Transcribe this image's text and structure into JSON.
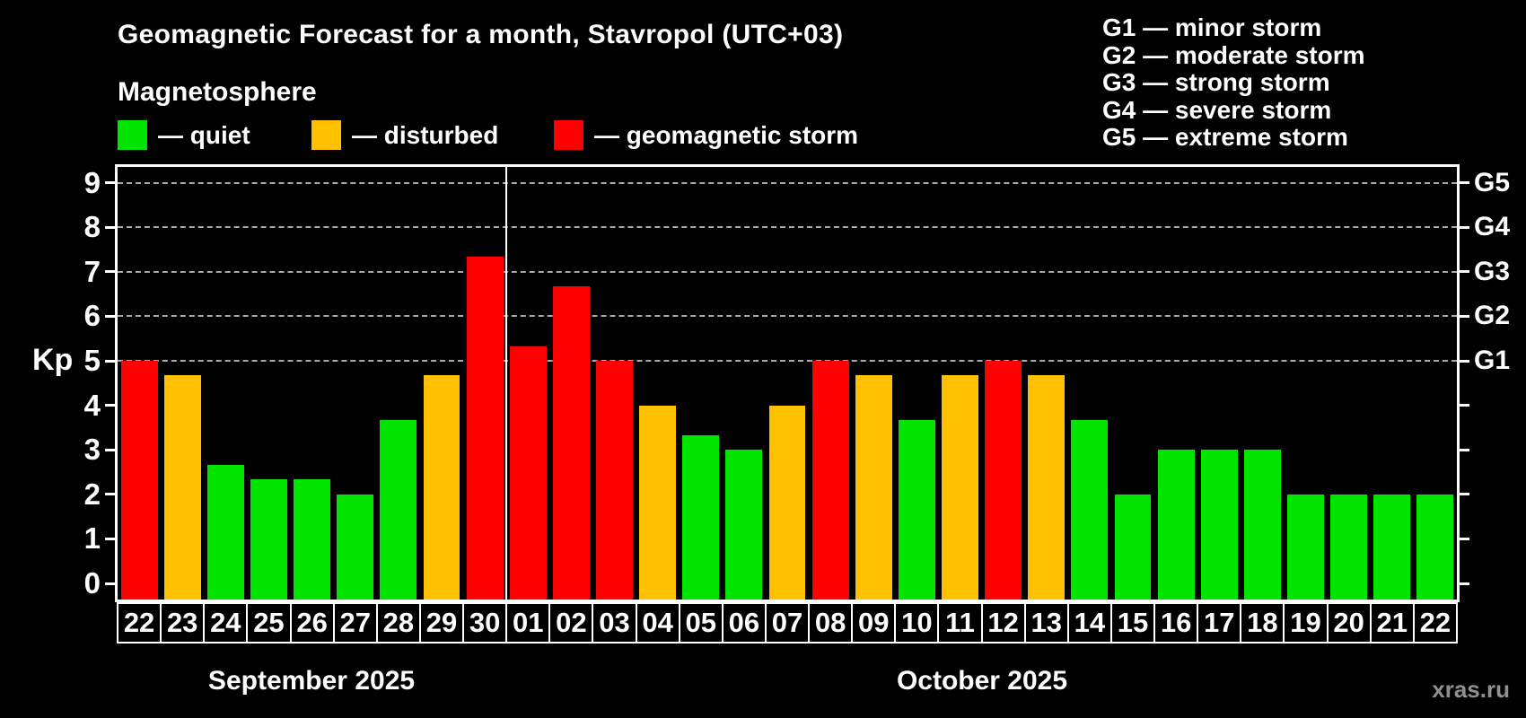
{
  "title": "Geomagnetic Forecast for a month, Stavropol (UTC+03)",
  "subtitle": "Magnetosphere",
  "watermark": "xras.ru",
  "colors": {
    "quiet": "#00e400",
    "disturbed": "#ffc000",
    "storm": "#ff0000",
    "grid": "#a9a9a9",
    "axis": "#ffffff",
    "watermark": "#909090"
  },
  "legend": {
    "items": [
      {
        "status": "quiet",
        "label": "— quiet"
      },
      {
        "status": "disturbed",
        "label": "— disturbed"
      },
      {
        "status": "storm",
        "label": "— geomagnetic storm"
      }
    ]
  },
  "g_legend": [
    "G1 — minor storm",
    "G2 — moderate storm",
    "G3 — strong storm",
    "G4 — severe storm",
    "G5 — extreme storm"
  ],
  "chart_data": {
    "type": "bar",
    "title": "Geomagnetic Forecast for a month, Stavropol (UTC+03)",
    "xlabel": "",
    "ylabel": "Kp",
    "ylim": [
      0,
      9.4
    ],
    "yticks": [
      0,
      1,
      2,
      3,
      4,
      5,
      6,
      7,
      8,
      9
    ],
    "gridlines_at": [
      5,
      6,
      7,
      8,
      9
    ],
    "grid": "horizontal dashed at storm levels only",
    "legend_position": "top",
    "right_axis_labels": {
      "5": "G1",
      "6": "G2",
      "7": "G3",
      "8": "G4",
      "9": "G5"
    },
    "groups": [
      {
        "month": "September 2025",
        "count": 9
      },
      {
        "month": "October 2025",
        "count": 22
      }
    ],
    "bars": [
      {
        "date": "22",
        "value": 5.0,
        "status": "storm"
      },
      {
        "date": "23",
        "value": 4.67,
        "status": "disturbed"
      },
      {
        "date": "24",
        "value": 2.67,
        "status": "quiet"
      },
      {
        "date": "25",
        "value": 2.33,
        "status": "quiet"
      },
      {
        "date": "26",
        "value": 2.33,
        "status": "quiet"
      },
      {
        "date": "27",
        "value": 2.0,
        "status": "quiet"
      },
      {
        "date": "28",
        "value": 3.67,
        "status": "quiet"
      },
      {
        "date": "29",
        "value": 4.67,
        "status": "disturbed"
      },
      {
        "date": "30",
        "value": 7.33,
        "status": "storm"
      },
      {
        "date": "01",
        "value": 5.33,
        "status": "storm"
      },
      {
        "date": "02",
        "value": 6.67,
        "status": "storm"
      },
      {
        "date": "03",
        "value": 5.0,
        "status": "storm"
      },
      {
        "date": "04",
        "value": 4.0,
        "status": "disturbed"
      },
      {
        "date": "05",
        "value": 3.33,
        "status": "quiet"
      },
      {
        "date": "06",
        "value": 3.0,
        "status": "quiet"
      },
      {
        "date": "07",
        "value": 4.0,
        "status": "disturbed"
      },
      {
        "date": "08",
        "value": 5.0,
        "status": "storm"
      },
      {
        "date": "09",
        "value": 4.67,
        "status": "disturbed"
      },
      {
        "date": "10",
        "value": 3.67,
        "status": "quiet"
      },
      {
        "date": "11",
        "value": 4.67,
        "status": "disturbed"
      },
      {
        "date": "12",
        "value": 5.0,
        "status": "storm"
      },
      {
        "date": "13",
        "value": 4.67,
        "status": "disturbed"
      },
      {
        "date": "14",
        "value": 3.67,
        "status": "quiet"
      },
      {
        "date": "15",
        "value": 2.0,
        "status": "quiet"
      },
      {
        "date": "16",
        "value": 3.0,
        "status": "quiet"
      },
      {
        "date": "17",
        "value": 3.0,
        "status": "quiet"
      },
      {
        "date": "18",
        "value": 3.0,
        "status": "quiet"
      },
      {
        "date": "19",
        "value": 2.0,
        "status": "quiet"
      },
      {
        "date": "20",
        "value": 2.0,
        "status": "quiet"
      },
      {
        "date": "21",
        "value": 2.0,
        "status": "quiet"
      },
      {
        "date": "22",
        "value": 2.0,
        "status": "quiet"
      }
    ]
  }
}
